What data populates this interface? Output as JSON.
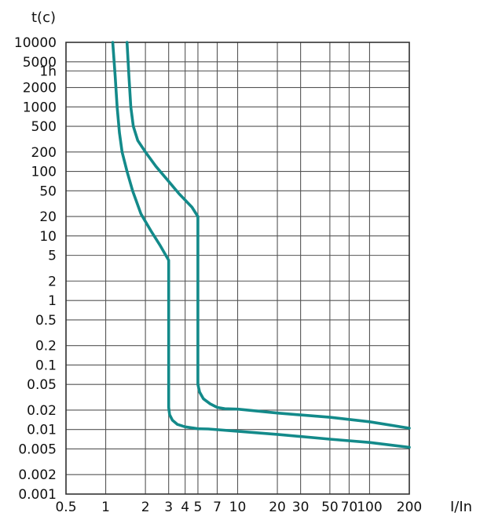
{
  "chart_data": {
    "type": "line",
    "title": "",
    "ylabel": "t(c)",
    "xlabel": "I/In",
    "x_scale": "log",
    "y_scale": "log",
    "xlim": [
      0.5,
      200
    ],
    "ylim": [
      0.001,
      10000
    ],
    "grid": true,
    "legend": "none",
    "curve_color": "#138a8a",
    "x_ticks": [
      {
        "value": 0.5,
        "label": "0.5"
      },
      {
        "value": 1,
        "label": "1"
      },
      {
        "value": 2,
        "label": "2"
      },
      {
        "value": 3,
        "label": "3"
      },
      {
        "value": 4,
        "label": "4"
      },
      {
        "value": 5,
        "label": "5"
      },
      {
        "value": 7,
        "label": "7"
      },
      {
        "value": 10,
        "label": "10"
      },
      {
        "value": 20,
        "label": "20"
      },
      {
        "value": 30,
        "label": "30"
      },
      {
        "value": 50,
        "label": "50"
      },
      {
        "value": 70,
        "label": "70"
      },
      {
        "value": 100,
        "label": "100"
      },
      {
        "value": 200,
        "label": "200"
      }
    ],
    "y_ticks": [
      {
        "value": 10000,
        "label": "10000"
      },
      {
        "value": 5000,
        "label": "5000"
      },
      {
        "value": 3600,
        "label": "1h"
      },
      {
        "value": 2000,
        "label": "2000"
      },
      {
        "value": 1000,
        "label": "1000"
      },
      {
        "value": 500,
        "label": "500"
      },
      {
        "value": 200,
        "label": "200"
      },
      {
        "value": 100,
        "label": "100"
      },
      {
        "value": 50,
        "label": "50"
      },
      {
        "value": 20,
        "label": "20"
      },
      {
        "value": 10,
        "label": "10"
      },
      {
        "value": 5,
        "label": "5"
      },
      {
        "value": 2,
        "label": "2"
      },
      {
        "value": 1,
        "label": "1"
      },
      {
        "value": 0.5,
        "label": "0.5"
      },
      {
        "value": 0.2,
        "label": "0.2"
      },
      {
        "value": 0.1,
        "label": "0.1"
      },
      {
        "value": 0.05,
        "label": "0.05"
      },
      {
        "value": 0.02,
        "label": "0.02"
      },
      {
        "value": 0.01,
        "label": "0.01"
      },
      {
        "value": 0.005,
        "label": "0.005"
      },
      {
        "value": 0.002,
        "label": "0.002"
      },
      {
        "value": 0.001,
        "label": "0.001"
      }
    ],
    "series": [
      {
        "points": [
          [
            1.13,
            10000
          ],
          [
            1.18,
            3000
          ],
          [
            1.22,
            1000
          ],
          [
            1.27,
            400
          ],
          [
            1.33,
            200
          ],
          [
            1.45,
            100
          ],
          [
            1.6,
            50
          ],
          [
            1.85,
            22
          ],
          [
            2.2,
            12
          ],
          [
            2.6,
            7
          ],
          [
            3.0,
            4.2
          ],
          [
            3.0,
            0.022
          ],
          [
            3.05,
            0.017
          ],
          [
            3.2,
            0.014
          ],
          [
            3.5,
            0.012
          ],
          [
            4.0,
            0.011
          ],
          [
            5.0,
            0.0103
          ],
          [
            6.0,
            0.0102
          ],
          [
            10.0,
            0.0094
          ],
          [
            20.0,
            0.0084
          ],
          [
            50.0,
            0.0071
          ],
          [
            100.0,
            0.0063
          ],
          [
            200.0,
            0.0053
          ]
        ]
      },
      {
        "points": [
          [
            1.45,
            10000
          ],
          [
            1.5,
            3000
          ],
          [
            1.55,
            1000
          ],
          [
            1.62,
            500
          ],
          [
            1.75,
            300
          ],
          [
            2.0,
            200
          ],
          [
            2.4,
            120
          ],
          [
            3.0,
            70
          ],
          [
            3.6,
            45
          ],
          [
            4.5,
            28
          ],
          [
            5.0,
            20
          ],
          [
            5.0,
            0.05
          ],
          [
            5.15,
            0.038
          ],
          [
            5.5,
            0.03
          ],
          [
            6.2,
            0.025
          ],
          [
            7.0,
            0.022
          ],
          [
            8.0,
            0.021
          ],
          [
            10.0,
            0.0207
          ],
          [
            20.0,
            0.018
          ],
          [
            50.0,
            0.0155
          ],
          [
            100.0,
            0.0132
          ],
          [
            200.0,
            0.0105
          ]
        ]
      }
    ]
  }
}
